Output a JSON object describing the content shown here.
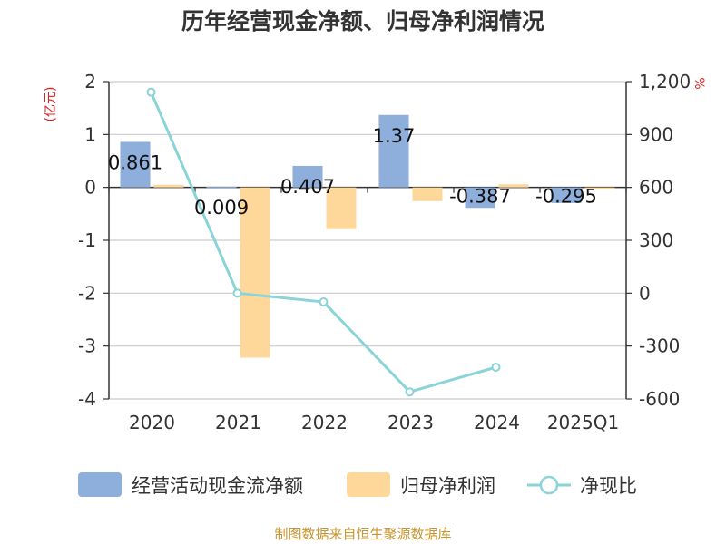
{
  "chart_data": {
    "type": "bar+line",
    "title": "历年经营现金净额、归母净利润情况",
    "categories": [
      "2020",
      "2021",
      "2022",
      "2023",
      "2024",
      "2025Q1"
    ],
    "left_axis": {
      "label": "(亿元)",
      "ticks": [
        2,
        1,
        0,
        -1,
        -2,
        -3,
        -4
      ],
      "range": [
        -4,
        2
      ]
    },
    "right_axis": {
      "label": "%",
      "ticks": [
        "1,200",
        "900",
        "600",
        "300",
        "0",
        "-300",
        "-600"
      ],
      "range": [
        -600,
        1200
      ]
    },
    "series": [
      {
        "name": "经营活动现金流净额",
        "kind": "bar",
        "axis": "left",
        "color": "#8eaedb",
        "values": [
          0.861,
          0.009,
          0.407,
          1.37,
          -0.387,
          -0.295
        ],
        "labels": [
          "0.861",
          "0.009",
          "0.407",
          "1.37",
          "-0.387",
          "-0.295"
        ]
      },
      {
        "name": "归母净利润",
        "kind": "bar",
        "axis": "left",
        "color": "#fdd89a",
        "values": [
          0.05,
          -3.22,
          -0.79,
          -0.26,
          0.06,
          -0.03
        ]
      },
      {
        "name": "净现比",
        "kind": "line",
        "axis": "right",
        "color": "#8ad4d8",
        "values": [
          1140,
          0,
          -50,
          -560,
          -420,
          null
        ]
      }
    ],
    "legend": [
      "经营活动现金流净额",
      "归母净利润",
      "净现比"
    ],
    "source": "制图数据来自恒生聚源数据库"
  }
}
